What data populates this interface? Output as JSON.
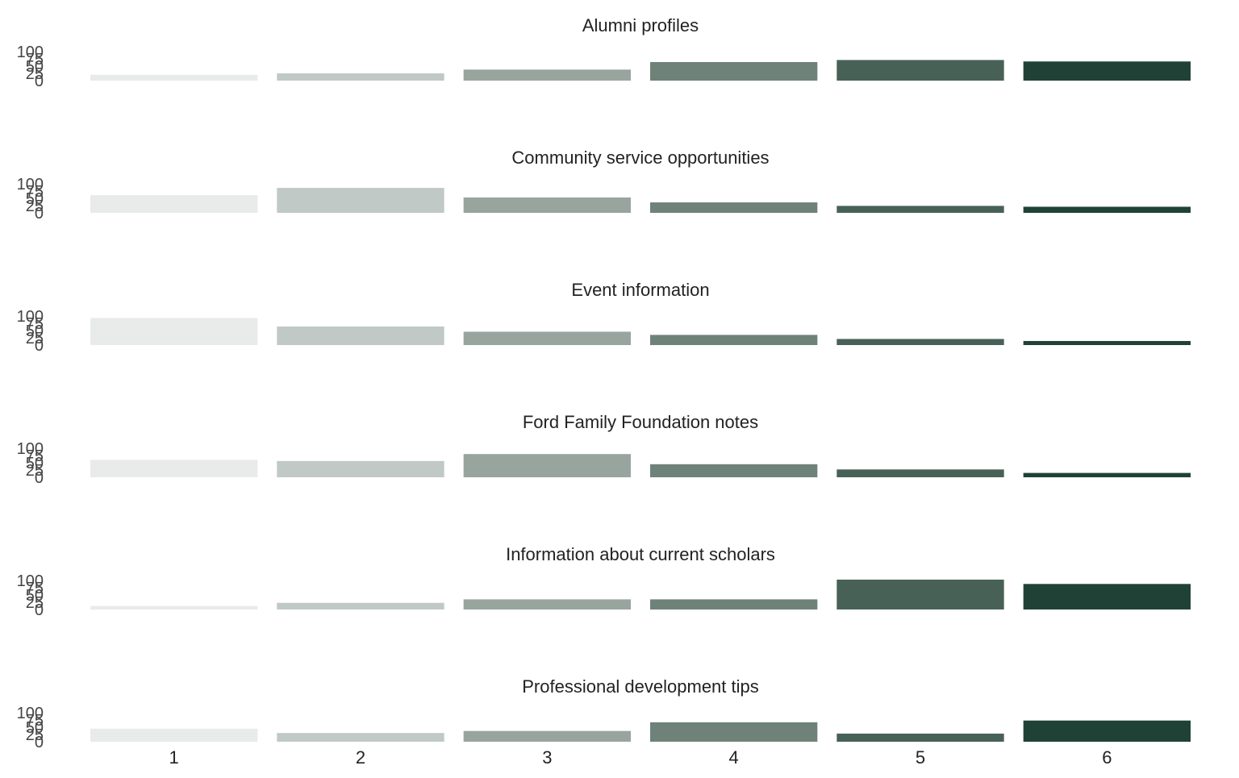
{
  "chart_data": {
    "type": "bar",
    "layout": "small-multiples",
    "categories": [
      "1",
      "2",
      "3",
      "4",
      "5",
      "6"
    ],
    "ylim": [
      0,
      100
    ],
    "yticks": [
      "0",
      "25",
      "50",
      "75",
      "100"
    ],
    "grid": false,
    "legend": "none",
    "colors": [
      "#e8ebea",
      "#c0c9c6",
      "#98a59f",
      "#6f827a",
      "#486157",
      "#204236"
    ],
    "panels": [
      {
        "title": "Alumni profiles",
        "values": [
          20,
          25,
          38,
          64,
          71,
          66
        ]
      },
      {
        "title": "Community service opportunities",
        "values": [
          61,
          86,
          53,
          36,
          24,
          21
        ]
      },
      {
        "title": "Event information",
        "values": [
          93,
          64,
          46,
          35,
          21,
          14
        ]
      },
      {
        "title": "Ford Family Foundation notes",
        "values": [
          60,
          56,
          80,
          45,
          27,
          15
        ]
      },
      {
        "title": "Information about current scholars",
        "values": [
          12,
          23,
          35,
          35,
          103,
          88
        ]
      },
      {
        "title": "Professional development tips",
        "values": [
          45,
          30,
          37,
          67,
          28,
          73
        ]
      }
    ]
  }
}
